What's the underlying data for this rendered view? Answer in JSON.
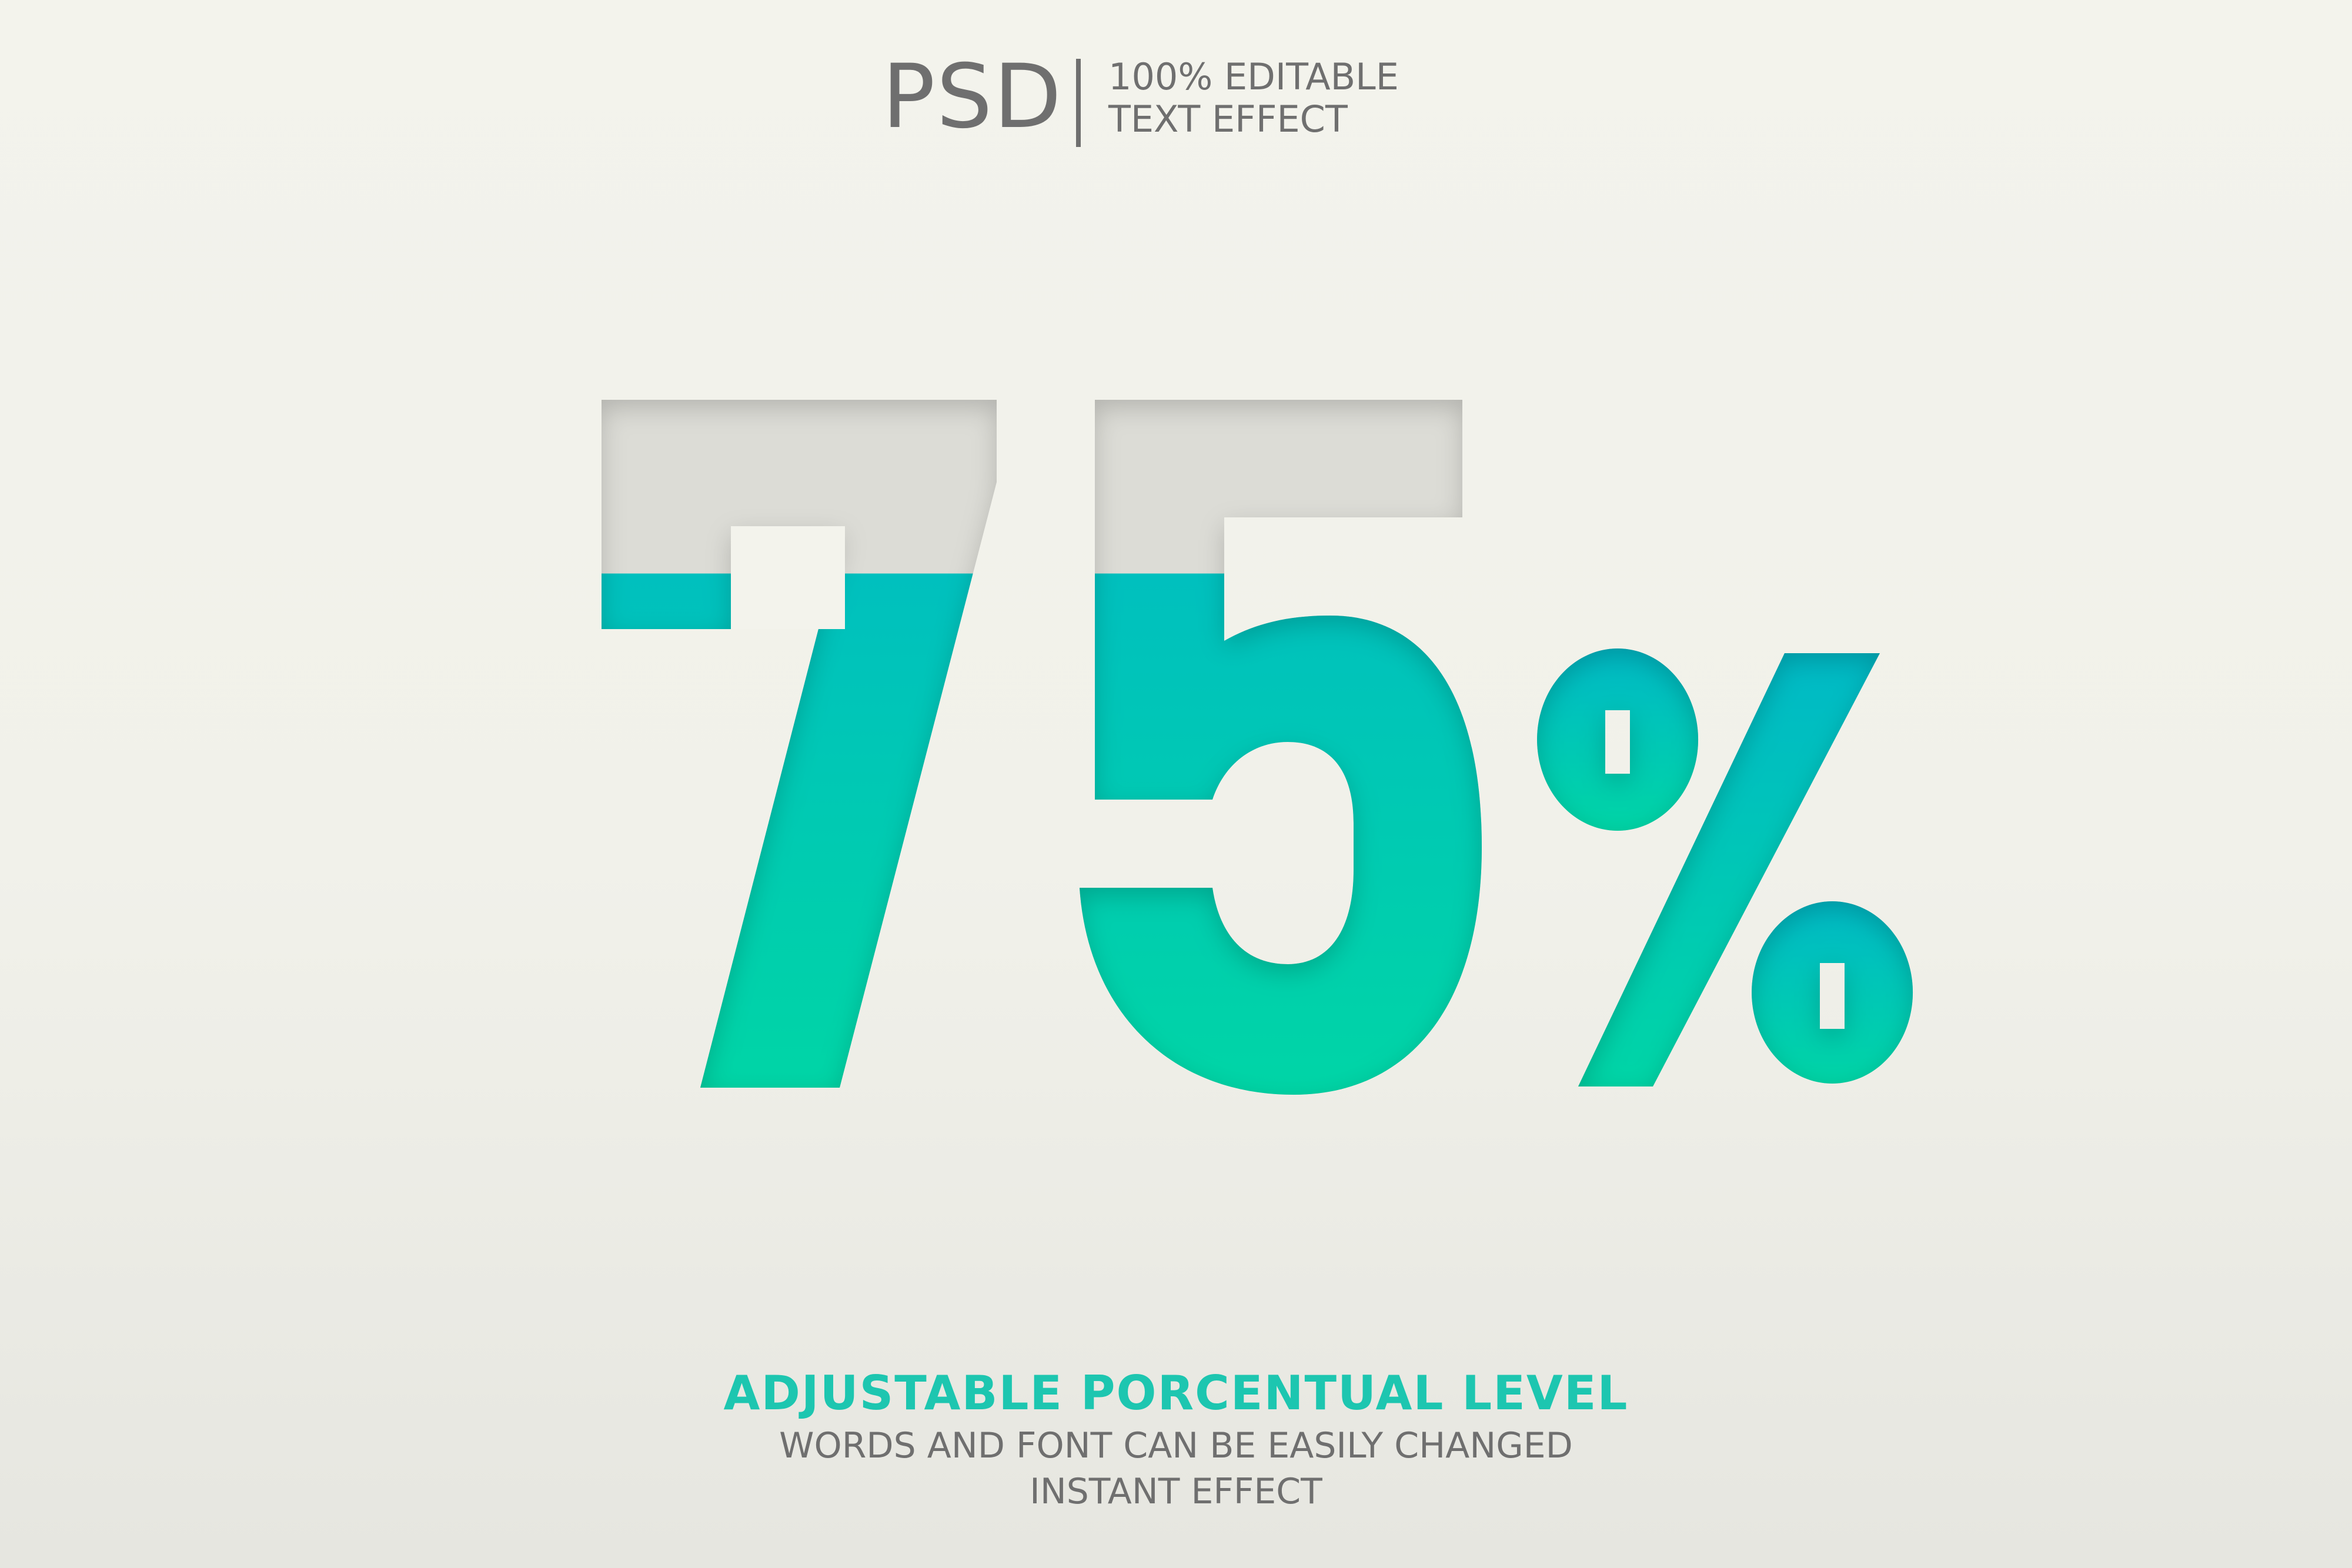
{
  "header": {
    "brand": "PSD",
    "tagline_line1": "100% EDITABLE",
    "tagline_line2": "TEXT EFFECT"
  },
  "effect": {
    "text": "75%",
    "fill_level_percent": 75,
    "fill_color_top": "#00b9c6",
    "fill_color_bottom": "#00d5a6",
    "empty_color": "#dcdcd6",
    "paper_color": "#f3f3ec"
  },
  "footer": {
    "headline": "ADJUSTABLE PORCENTUAL LEVEL",
    "line1": "WORDS AND FONT CAN BE EASILY CHANGED",
    "line2": "INSTANT EFFECT"
  }
}
